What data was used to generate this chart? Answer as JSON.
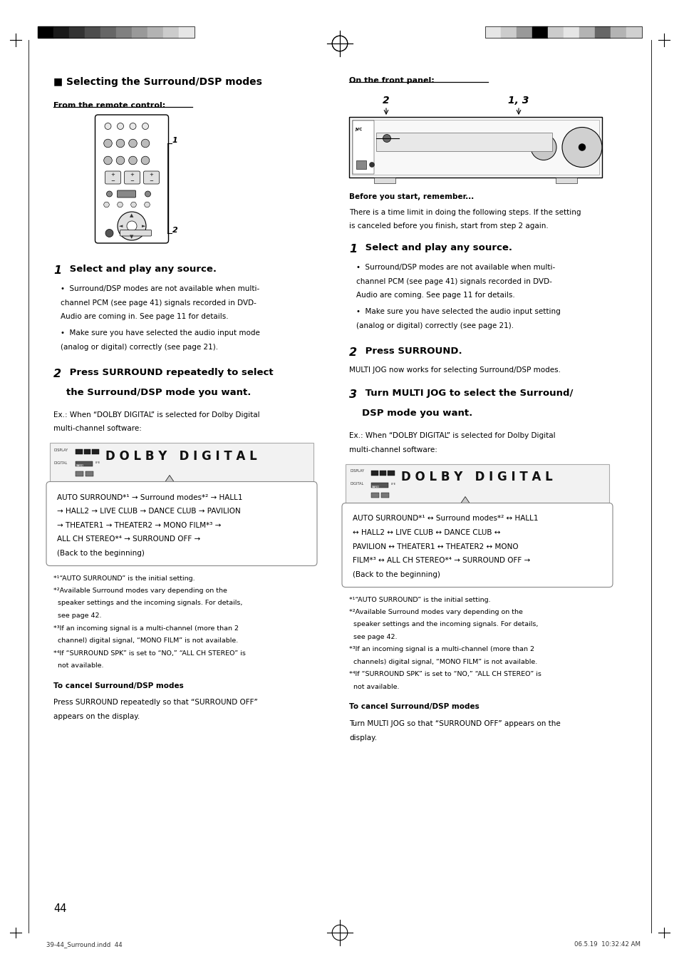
{
  "page_bg": "#ffffff",
  "page_width": 9.54,
  "page_height": 13.52,
  "dpi": 100,
  "header_bar_colors_left": [
    "#000000",
    "#1a1a1a",
    "#333333",
    "#4d4d4d",
    "#666666",
    "#808080",
    "#999999",
    "#b3b3b3",
    "#cccccc",
    "#e6e6e6"
  ],
  "header_bar_colors_right": [
    "#e6e6e6",
    "#cccccc",
    "#999999",
    "#000000",
    "#cccccc",
    "#e6e6e6",
    "#b3b3b3",
    "#666666",
    "#b3b3b3",
    "#d0d0d0"
  ],
  "main_title": "■ Selecting the Surround/DSP modes",
  "left_subtitle": "From the remote control:",
  "right_subtitle": "On the front panel:",
  "step1_left_num": "1",
  "step1_left_title": " Select and play any source.",
  "step1_left_b1_lines": [
    "•  Surround/DSP modes are not available when multi-",
    "channel PCM (see page 41) signals recorded in DVD-",
    "Audio are coming in. See page 11 for details."
  ],
  "step1_left_b2_lines": [
    "•  Make sure you have selected the audio input mode",
    "(analog or digital) correctly (see page 21)."
  ],
  "step2_left_num": "2",
  "step2_left_title1": " Press SURROUND repeatedly to select",
  "step2_left_title2": "the Surround/DSP mode you want.",
  "step2_left_ex_lines": [
    "Ex.: When “DOLBY DIGITAL” is selected for Dolby Digital",
    "multi-channel software:"
  ],
  "step2_left_flow_lines": [
    "AUTO SURROUND*¹ → Surround modes*² → HALL1",
    "→ HALL2 → LIVE CLUB → DANCE CLUB → PAVILION",
    "→ THEATER1 → THEATER2 → MONO FILM*³ →",
    "ALL CH STEREO*⁴ → SURROUND OFF →",
    "(Back to the beginning)"
  ],
  "footnotes_left_lines": [
    "*¹“AUTO SURROUND” is the initial setting.",
    "*²Available Surround modes vary depending on the",
    "  speaker settings and the incoming signals. For details,",
    "  see page 42.",
    "*³If an incoming signal is a multi-channel (more than 2",
    "  channel) digital signal, “MONO FILM” is not available.",
    "*⁴If “SURROUND SPK” is set to “NO,” “ALL CH STEREO” is",
    "  not available."
  ],
  "cancel_left_title": "To cancel Surround/DSP modes",
  "cancel_left_lines": [
    "Press SURROUND repeatedly so that “SURROUND OFF”",
    "appears on the display."
  ],
  "before_title": "Before you start, remember...",
  "before_lines": [
    "There is a time limit in doing the following steps. If the setting",
    "is canceled before you finish, start from step 2 again."
  ],
  "step1_right_num": "1",
  "step1_right_title": " Select and play any source.",
  "step1_right_b1_lines": [
    "•  Surround/DSP modes are not available when multi-",
    "channel PCM (see page 41) signals recorded in DVD-",
    "Audio are coming. See page 11 for details."
  ],
  "step1_right_b2_lines": [
    "•  Make sure you have selected the audio input setting",
    "(analog or digital) correctly (see page 21)."
  ],
  "step2_right_num": "2",
  "step2_right_title": " Press SURROUND.",
  "step2_right_text": "MULTI JOG now works for selecting Surround/DSP modes.",
  "step3_right_num": "3",
  "step3_right_title1": " Turn MULTI JOG to select the Surround/",
  "step3_right_title2": "DSP mode you want.",
  "step3_right_ex_lines": [
    "Ex.: When “DOLBY DIGITAL” is selected for Dolby Digital",
    "multi-channel software:"
  ],
  "step3_right_flow_lines": [
    "AUTO SURROUND*¹ ↔ Surround modes*² ↔ HALL1",
    "↔ HALL2 ↔ LIVE CLUB ↔ DANCE CLUB ↔",
    "PAVILION ↔ THEATER1 ↔ THEATER2 ↔ MONO",
    "FILM*³ ↔ ALL CH STEREO*⁴ → SURROUND OFF →",
    "(Back to the beginning)"
  ],
  "footnotes_right_lines": [
    "*¹“AUTO SURROUND” is the initial setting.",
    "*²Available Surround modes vary depending on the",
    "  speaker settings and the incoming signals. For details,",
    "  see page 42.",
    "*³If an incoming signal is a multi-channel (more than 2",
    "  channels) digital signal, “MONO FILM” is not available.",
    "*⁴If “SURROUND SPK” is set to “NO,” “ALL CH STEREO” is",
    "  not available."
  ],
  "cancel_right_title": "To cancel Surround/DSP modes",
  "cancel_right_lines": [
    "Turn MULTI JOG so that “SURROUND OFF” appears on the",
    "display."
  ],
  "page_number": "44",
  "footer_left": "39-44_Surround.indd  44",
  "footer_right": "06.5.19  10:32:42 AM"
}
